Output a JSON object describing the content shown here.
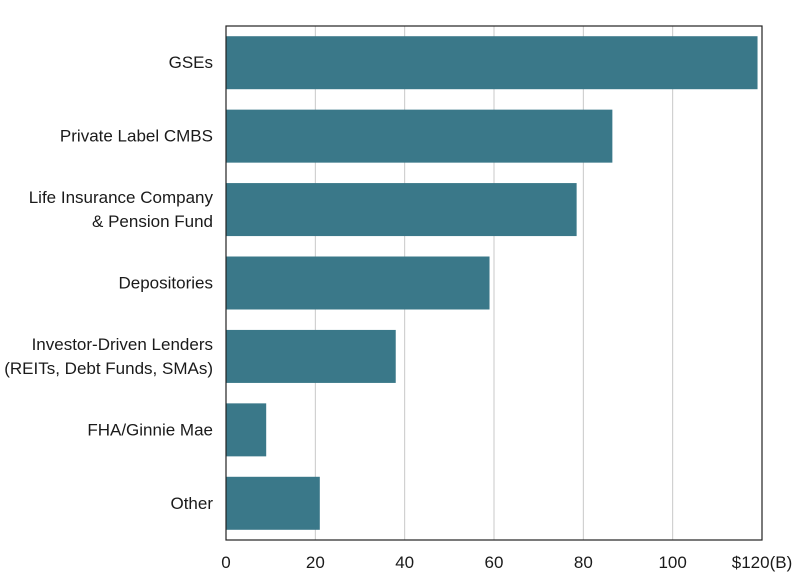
{
  "chart_data": {
    "type": "bar",
    "orientation": "horizontal",
    "categories": [
      [
        "GSEs"
      ],
      [
        "Private Label CMBS"
      ],
      [
        "Life Insurance Company",
        "& Pension Fund"
      ],
      [
        "Depositories"
      ],
      [
        "Investor-Driven Lenders",
        "(REITs, Debt Funds, SMAs)"
      ],
      [
        "FHA/Ginnie Mae"
      ],
      [
        "Other"
      ]
    ],
    "values": [
      119,
      86.5,
      78.5,
      59,
      38,
      9,
      21
    ],
    "xlim": [
      0,
      120
    ],
    "x_ticks": [
      0,
      20,
      40,
      60,
      80,
      100,
      120
    ],
    "x_tick_labels": [
      "0",
      "20",
      "40",
      "60",
      "80",
      "100",
      "$120(B)"
    ],
    "grid": "vertical",
    "bar_color": "#3a7889"
  }
}
